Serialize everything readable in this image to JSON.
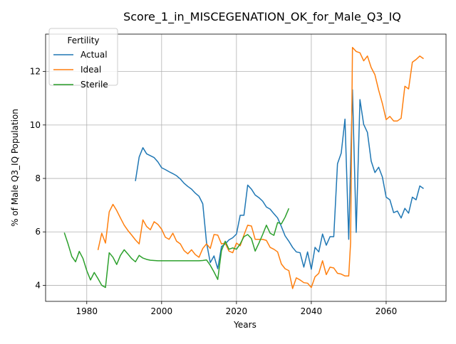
{
  "chart_data": {
    "type": "line",
    "title": "Score_1_in_MISCEGENATION_OK_for_Male_Q3_IQ",
    "xlabel": "Years",
    "ylabel": "% of Male Q3_IQ Population",
    "xlim": [
      1969,
      2076
    ],
    "ylim": [
      3.4,
      13.4
    ],
    "xticks": [
      1980,
      2000,
      2020,
      2040,
      2060
    ],
    "yticks": [
      4,
      6,
      8,
      10,
      12
    ],
    "grid": true,
    "legend": {
      "title": "Fertility",
      "position": "top-left"
    },
    "series": [
      {
        "name": "Actual",
        "color": "#1f77b4",
        "points": [
          [
            1993,
            7.9
          ],
          [
            1994,
            8.8
          ],
          [
            1995,
            9.15
          ],
          [
            1996,
            8.92
          ],
          [
            1997,
            8.85
          ],
          [
            1998,
            8.78
          ],
          [
            1999,
            8.62
          ],
          [
            2000,
            8.4
          ],
          [
            2001,
            8.33
          ],
          [
            2002,
            8.25
          ],
          [
            2003,
            8.18
          ],
          [
            2004,
            8.1
          ],
          [
            2005,
            7.98
          ],
          [
            2006,
            7.82
          ],
          [
            2007,
            7.7
          ],
          [
            2008,
            7.6
          ],
          [
            2009,
            7.45
          ],
          [
            2010,
            7.33
          ],
          [
            2011,
            7.05
          ],
          [
            2012,
            5.6
          ],
          [
            2013,
            4.85
          ],
          [
            2014,
            5.1
          ],
          [
            2015,
            4.62
          ],
          [
            2016,
            5.45
          ],
          [
            2017,
            5.55
          ],
          [
            2018,
            5.7
          ],
          [
            2019,
            5.78
          ],
          [
            2020,
            5.92
          ],
          [
            2021,
            6.62
          ],
          [
            2022,
            6.62
          ],
          [
            2023,
            7.75
          ],
          [
            2024,
            7.6
          ],
          [
            2025,
            7.38
          ],
          [
            2026,
            7.28
          ],
          [
            2027,
            7.15
          ],
          [
            2028,
            6.93
          ],
          [
            2029,
            6.85
          ],
          [
            2030,
            6.68
          ],
          [
            2031,
            6.52
          ],
          [
            2032,
            6.2
          ],
          [
            2033,
            5.85
          ],
          [
            2034,
            5.65
          ],
          [
            2035,
            5.42
          ],
          [
            2036,
            5.25
          ],
          [
            2037,
            5.22
          ],
          [
            2038,
            4.68
          ],
          [
            2039,
            5.25
          ],
          [
            2040,
            4.6
          ],
          [
            2041,
            5.42
          ],
          [
            2042,
            5.25
          ],
          [
            2043,
            5.92
          ],
          [
            2044,
            5.5
          ],
          [
            2045,
            5.82
          ],
          [
            2046,
            5.82
          ],
          [
            2047,
            8.55
          ],
          [
            2048,
            8.95
          ],
          [
            2049,
            10.22
          ],
          [
            2050,
            5.72
          ],
          [
            2051,
            11.32
          ],
          [
            2052,
            5.98
          ],
          [
            2053,
            10.95
          ],
          [
            2054,
            10.02
          ],
          [
            2055,
            9.72
          ],
          [
            2056,
            8.65
          ],
          [
            2057,
            8.22
          ],
          [
            2058,
            8.42
          ],
          [
            2059,
            8.05
          ],
          [
            2060,
            7.3
          ],
          [
            2061,
            7.2
          ],
          [
            2062,
            6.72
          ],
          [
            2063,
            6.78
          ],
          [
            2064,
            6.52
          ],
          [
            2065,
            6.88
          ],
          [
            2066,
            6.7
          ],
          [
            2067,
            7.3
          ],
          [
            2068,
            7.2
          ],
          [
            2069,
            7.72
          ],
          [
            2070,
            7.62
          ]
        ]
      },
      {
        "name": "Ideal",
        "color": "#ff7f0e",
        "points": [
          [
            1983,
            5.32
          ],
          [
            1984,
            5.95
          ],
          [
            1985,
            5.58
          ],
          [
            1986,
            6.75
          ],
          [
            1987,
            7.03
          ],
          [
            1988,
            6.8
          ],
          [
            1989,
            6.52
          ],
          [
            1990,
            6.25
          ],
          [
            1991,
            6.05
          ],
          [
            1992,
            5.88
          ],
          [
            1993,
            5.7
          ],
          [
            1994,
            5.55
          ],
          [
            1995,
            6.45
          ],
          [
            1996,
            6.2
          ],
          [
            1997,
            6.08
          ],
          [
            1998,
            6.38
          ],
          [
            1999,
            6.28
          ],
          [
            2000,
            6.1
          ],
          [
            2001,
            5.8
          ],
          [
            2002,
            5.72
          ],
          [
            2003,
            5.95
          ],
          [
            2004,
            5.65
          ],
          [
            2005,
            5.55
          ],
          [
            2006,
            5.3
          ],
          [
            2007,
            5.18
          ],
          [
            2008,
            5.33
          ],
          [
            2009,
            5.15
          ],
          [
            2010,
            5.05
          ],
          [
            2011,
            5.38
          ],
          [
            2012,
            5.55
          ],
          [
            2013,
            5.38
          ],
          [
            2014,
            5.9
          ],
          [
            2015,
            5.88
          ],
          [
            2016,
            5.55
          ],
          [
            2017,
            5.58
          ],
          [
            2018,
            5.28
          ],
          [
            2019,
            5.22
          ],
          [
            2020,
            5.58
          ],
          [
            2021,
            5.48
          ],
          [
            2022,
            5.88
          ],
          [
            2023,
            6.25
          ],
          [
            2024,
            6.22
          ],
          [
            2025,
            5.72
          ],
          [
            2026,
            5.72
          ],
          [
            2027,
            5.72
          ],
          [
            2028,
            5.68
          ],
          [
            2029,
            5.42
          ],
          [
            2030,
            5.35
          ],
          [
            2031,
            5.25
          ],
          [
            2032,
            4.8
          ],
          [
            2033,
            4.62
          ],
          [
            2034,
            4.55
          ],
          [
            2035,
            3.88
          ],
          [
            2036,
            4.28
          ],
          [
            2037,
            4.2
          ],
          [
            2038,
            4.1
          ],
          [
            2039,
            4.08
          ],
          [
            2040,
            3.92
          ],
          [
            2041,
            4.32
          ],
          [
            2042,
            4.45
          ],
          [
            2043,
            4.92
          ],
          [
            2044,
            4.4
          ],
          [
            2045,
            4.68
          ],
          [
            2046,
            4.65
          ],
          [
            2047,
            4.45
          ],
          [
            2048,
            4.42
          ],
          [
            2049,
            4.35
          ],
          [
            2050,
            4.35
          ],
          [
            2050.5,
            5.6
          ],
          [
            2051,
            12.9
          ],
          [
            2052,
            12.75
          ],
          [
            2053,
            12.7
          ],
          [
            2054,
            12.4
          ],
          [
            2055,
            12.58
          ],
          [
            2056,
            12.15
          ],
          [
            2057,
            11.88
          ],
          [
            2058,
            11.3
          ],
          [
            2059,
            10.8
          ],
          [
            2060,
            10.2
          ],
          [
            2061,
            10.32
          ],
          [
            2062,
            10.15
          ],
          [
            2063,
            10.15
          ],
          [
            2064,
            10.25
          ],
          [
            2065,
            11.45
          ],
          [
            2066,
            11.35
          ],
          [
            2067,
            12.35
          ],
          [
            2068,
            12.45
          ],
          [
            2069,
            12.58
          ],
          [
            2070,
            12.48
          ]
        ]
      },
      {
        "name": "Sterile",
        "color": "#2ca02c",
        "points": [
          [
            1974,
            5.97
          ],
          [
            1975,
            5.55
          ],
          [
            1976,
            5.08
          ],
          [
            1977,
            4.88
          ],
          [
            1978,
            5.27
          ],
          [
            1979,
            5.0
          ],
          [
            1980,
            4.55
          ],
          [
            1981,
            4.2
          ],
          [
            1982,
            4.48
          ],
          [
            1983,
            4.25
          ],
          [
            1984,
            4.0
          ],
          [
            1985,
            3.92
          ],
          [
            1986,
            5.22
          ],
          [
            1987,
            5.05
          ],
          [
            1988,
            4.78
          ],
          [
            1989,
            5.12
          ],
          [
            1990,
            5.33
          ],
          [
            1991,
            5.17
          ],
          [
            1992,
            5.0
          ],
          [
            1993,
            4.88
          ],
          [
            1994,
            5.12
          ],
          [
            1995,
            5.02
          ],
          [
            1996,
            4.97
          ],
          [
            1997,
            4.94
          ],
          [
            1998,
            4.93
          ],
          [
            1999,
            4.92
          ],
          [
            2000,
            4.92
          ],
          [
            2005,
            4.92
          ],
          [
            2010,
            4.92
          ],
          [
            2011,
            4.93
          ],
          [
            2012,
            4.95
          ],
          [
            2013,
            4.75
          ],
          [
            2014,
            4.5
          ],
          [
            2015,
            4.22
          ],
          [
            2016,
            5.3
          ],
          [
            2017,
            5.65
          ],
          [
            2018,
            5.35
          ],
          [
            2019,
            5.4
          ],
          [
            2020,
            5.35
          ],
          [
            2021,
            5.55
          ],
          [
            2022,
            5.82
          ],
          [
            2023,
            5.9
          ],
          [
            2024,
            5.75
          ],
          [
            2025,
            5.28
          ],
          [
            2026,
            5.58
          ],
          [
            2027,
            5.9
          ],
          [
            2028,
            6.25
          ],
          [
            2029,
            5.95
          ],
          [
            2030,
            5.87
          ],
          [
            2031,
            6.35
          ],
          [
            2032,
            6.3
          ],
          [
            2033,
            6.55
          ],
          [
            2034,
            6.88
          ]
        ]
      }
    ]
  }
}
